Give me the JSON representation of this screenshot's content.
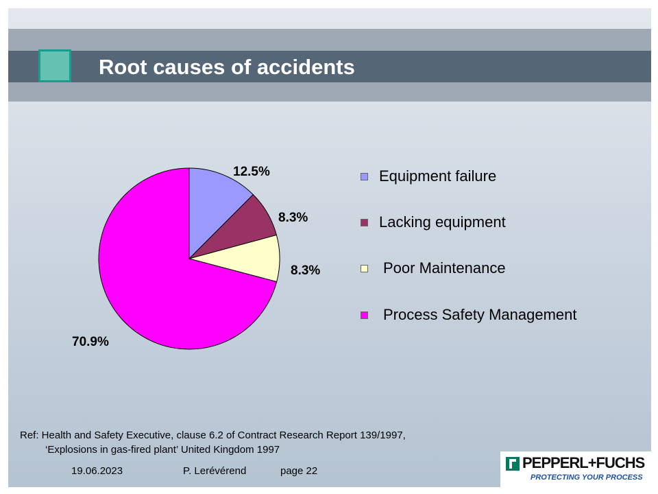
{
  "slide": {
    "title": "Root causes of accidents",
    "ref_line1": "Ref: Health and Safety Executive, clause 6.2 of Contract Research Report 139/1997,",
    "ref_line2": "‘Explosions in gas-fired plant’ United Kingdom 1997",
    "footer_date": "19.06.2023",
    "footer_author": "P. Lerévérend",
    "footer_page": "page 22",
    "logo_name": "PEPPERL+FUCHS",
    "logo_tagline": "PROTECTING YOUR PROCESS"
  },
  "colors": {
    "title_bar": "#556677",
    "accent_square": "#66c2b0",
    "logo_green": "#007a5e"
  },
  "chart_data": {
    "type": "pie",
    "categories": [
      "Equipment failure",
      "Lacking equipment",
      "Poor Maintenance",
      "Process Safety Management"
    ],
    "values": [
      12.5,
      8.3,
      8.3,
      70.9
    ],
    "labels": [
      "12.5%",
      "8.3%",
      "8.3%",
      "70.9%"
    ],
    "colors": [
      "#9999ff",
      "#993366",
      "#ffffcc",
      "#ff00ff"
    ],
    "legend_position": "right",
    "start": "12 o'clock, clockwise"
  }
}
